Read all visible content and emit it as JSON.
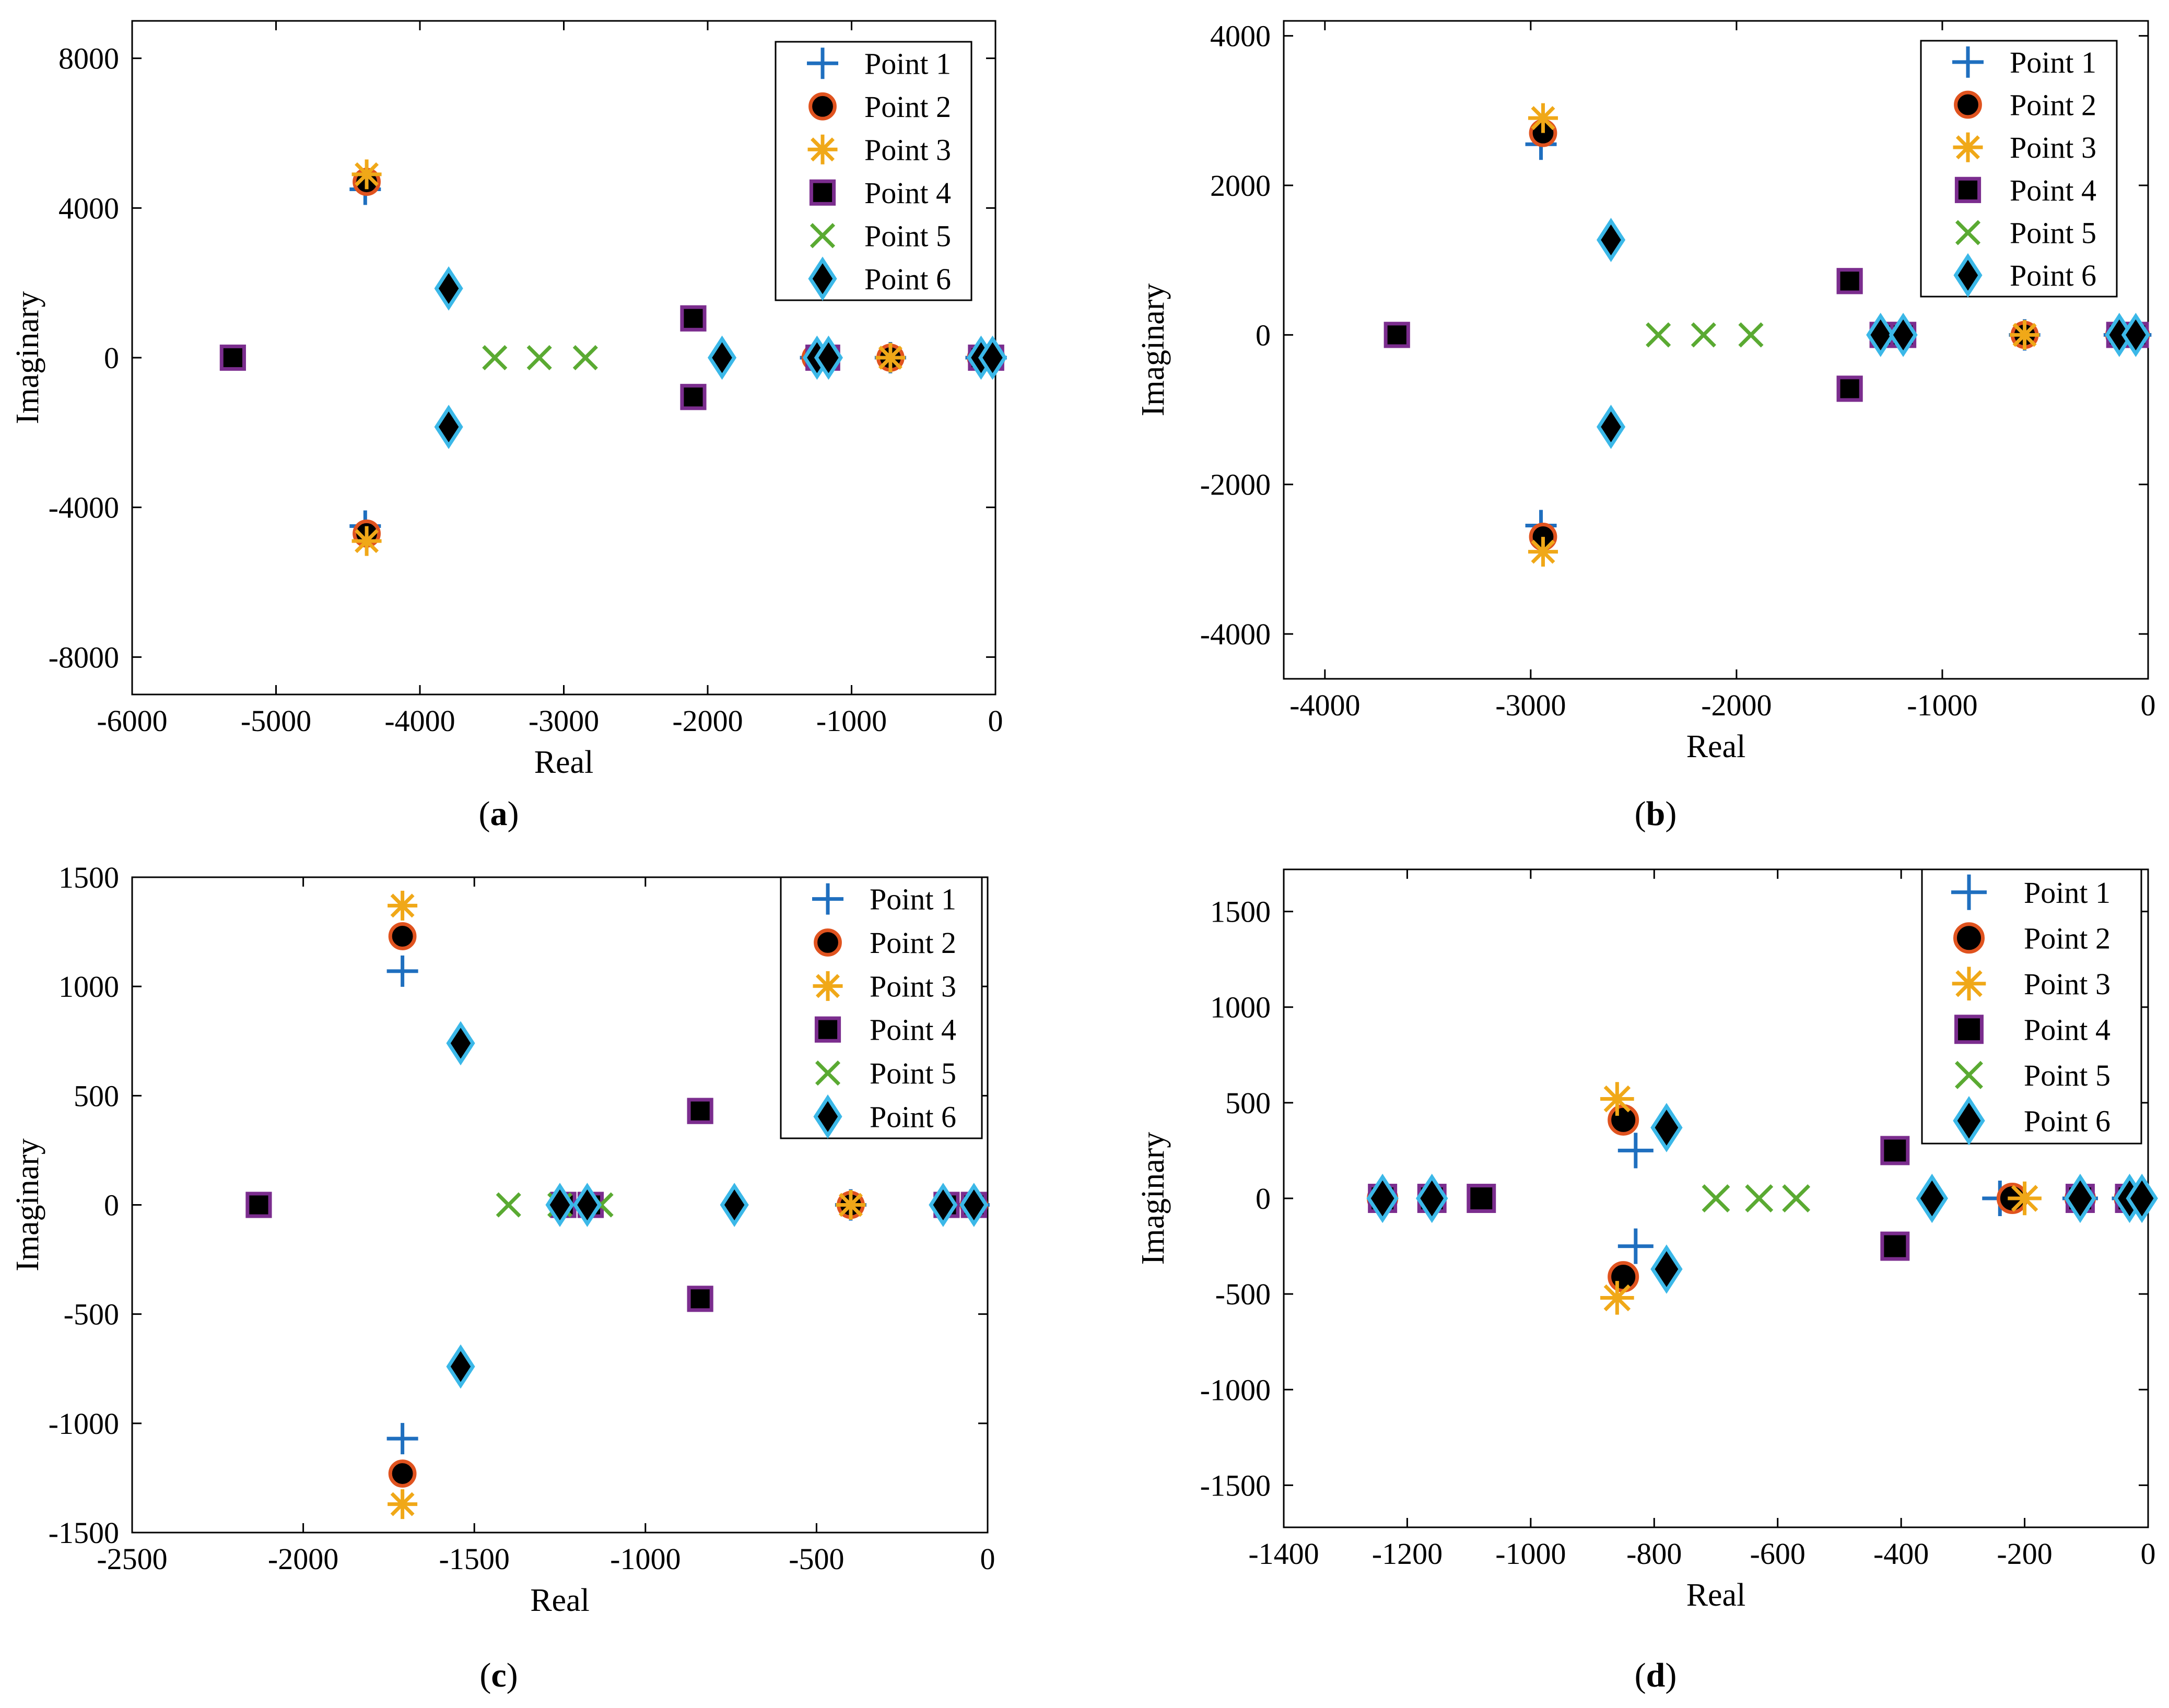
{
  "figure": {
    "colors": {
      "point1": "#1f6fbf",
      "point2_edge": "#e0531f",
      "point3": "#f0a818",
      "point4_edge": "#7b2d8e",
      "point5": "#5aaa32",
      "point6_edge": "#3bb8e8",
      "marker_fill": "#000000"
    }
  },
  "chart_data": [
    {
      "id": "a",
      "panel_label": "(a)",
      "type": "scatter",
      "xlabel": "Real",
      "ylabel": "Imaginary",
      "xlim": [
        -6000,
        0
      ],
      "ylim": [
        -9000,
        9000
      ],
      "xticks": [
        -6000,
        -5000,
        -4000,
        -3000,
        -2000,
        -1000,
        0
      ],
      "yticks": [
        -8000,
        -4000,
        0,
        4000,
        8000
      ],
      "legend_position": "top-right",
      "series": [
        {
          "name": "Point 1",
          "marker": "plus",
          "points": [
            [
              -4380,
              4500
            ],
            [
              -4380,
              -4500
            ],
            [
              -1250,
              0
            ],
            [
              -730,
              0
            ],
            [
              -100,
              0
            ],
            [
              -30,
              0
            ]
          ]
        },
        {
          "name": "Point 2",
          "marker": "circle",
          "points": [
            [
              -4370,
              4700
            ],
            [
              -4370,
              -4700
            ],
            [
              -1250,
              0
            ],
            [
              -730,
              0
            ],
            [
              -100,
              0
            ],
            [
              -30,
              0
            ]
          ]
        },
        {
          "name": "Point 3",
          "marker": "asterisk",
          "points": [
            [
              -4370,
              4900
            ],
            [
              -4370,
              -4900
            ],
            [
              -730,
              0
            ]
          ]
        },
        {
          "name": "Point 4",
          "marker": "square",
          "points": [
            [
              -5300,
              0
            ],
            [
              -2100,
              1050
            ],
            [
              -2100,
              -1050
            ],
            [
              -1230,
              0
            ],
            [
              -1170,
              0
            ],
            [
              -100,
              0
            ],
            [
              -30,
              0
            ]
          ]
        },
        {
          "name": "Point 5",
          "marker": "x",
          "points": [
            [
              -3480,
              0
            ],
            [
              -3170,
              0
            ],
            [
              -2850,
              0
            ]
          ]
        },
        {
          "name": "Point 6",
          "marker": "diamond",
          "points": [
            [
              -3800,
              1850
            ],
            [
              -3800,
              -1850
            ],
            [
              -1900,
              0
            ],
            [
              -1240,
              0
            ],
            [
              -1160,
              0
            ],
            [
              -100,
              0
            ],
            [
              -20,
              0
            ]
          ]
        }
      ]
    },
    {
      "id": "b",
      "panel_label": "(b)",
      "type": "scatter",
      "xlabel": "Real",
      "ylabel": "Imaginary",
      "xlim": [
        -4200,
        0
      ],
      "ylim": [
        -4600,
        4200
      ],
      "xticks": [
        -4000,
        -3000,
        -2000,
        -1000,
        0
      ],
      "yticks": [
        -4000,
        -2000,
        0,
        2000,
        4000
      ],
      "legend_position": "top-right",
      "series": [
        {
          "name": "Point 1",
          "marker": "plus",
          "points": [
            [
              -2950,
              2550
            ],
            [
              -2950,
              -2550
            ],
            [
              -600,
              0
            ],
            [
              -140,
              0
            ],
            [
              -60,
              0
            ]
          ]
        },
        {
          "name": "Point 2",
          "marker": "circle",
          "points": [
            [
              -2940,
              2700
            ],
            [
              -2940,
              -2700
            ],
            [
              -600,
              0
            ],
            [
              -140,
              0
            ],
            [
              -60,
              0
            ]
          ]
        },
        {
          "name": "Point 3",
          "marker": "asterisk",
          "points": [
            [
              -2940,
              2900
            ],
            [
              -2940,
              -2900
            ],
            [
              -600,
              0
            ]
          ]
        },
        {
          "name": "Point 4",
          "marker": "square",
          "points": [
            [
              -3650,
              0
            ],
            [
              -1450,
              720
            ],
            [
              -1450,
              -720
            ],
            [
              -1290,
              0
            ],
            [
              -1190,
              0
            ],
            [
              -140,
              0
            ],
            [
              -60,
              0
            ]
          ]
        },
        {
          "name": "Point 5",
          "marker": "x",
          "points": [
            [
              -2380,
              0
            ],
            [
              -2160,
              0
            ],
            [
              -1930,
              0
            ]
          ]
        },
        {
          "name": "Point 6",
          "marker": "diamond",
          "points": [
            [
              -2610,
              1270
            ],
            [
              -2610,
              -1230
            ],
            [
              -1300,
              0
            ],
            [
              -1190,
              0
            ],
            [
              -140,
              0
            ],
            [
              -60,
              0
            ]
          ]
        }
      ]
    },
    {
      "id": "c",
      "panel_label": "(c)",
      "type": "scatter",
      "xlabel": "Real",
      "ylabel": "Imaginary",
      "xlim": [
        -2500,
        0
      ],
      "ylim": [
        -1500,
        1500
      ],
      "xticks": [
        -2500,
        -2000,
        -1500,
        -1000,
        -500,
        0
      ],
      "yticks": [
        -1500,
        -1000,
        -500,
        0,
        500,
        1000,
        1500
      ],
      "legend_position": "top-right",
      "series": [
        {
          "name": "Point 1",
          "marker": "plus",
          "points": [
            [
              -1710,
              1070
            ],
            [
              -1710,
              -1070
            ],
            [
              -400,
              0
            ],
            [
              -40,
              0
            ]
          ]
        },
        {
          "name": "Point 2",
          "marker": "circle",
          "points": [
            [
              -1710,
              1230
            ],
            [
              -1710,
              -1230
            ],
            [
              -400,
              0
            ],
            [
              -40,
              0
            ]
          ]
        },
        {
          "name": "Point 3",
          "marker": "asterisk",
          "points": [
            [
              -1710,
              1370
            ],
            [
              -1710,
              -1370
            ],
            [
              -400,
              0
            ]
          ]
        },
        {
          "name": "Point 4",
          "marker": "square",
          "points": [
            [
              -2130,
              0
            ],
            [
              -840,
              430
            ],
            [
              -840,
              -430
            ],
            [
              -1240,
              0
            ],
            [
              -1160,
              0
            ],
            [
              -120,
              0
            ],
            [
              -40,
              0
            ]
          ]
        },
        {
          "name": "Point 5",
          "marker": "x",
          "points": [
            [
              -1400,
              0
            ],
            [
              -1250,
              0
            ],
            [
              -1130,
              0
            ]
          ]
        },
        {
          "name": "Point 6",
          "marker": "diamond",
          "points": [
            [
              -1540,
              740
            ],
            [
              -1540,
              -740
            ],
            [
              -1250,
              0
            ],
            [
              -1170,
              0
            ],
            [
              -740,
              0
            ],
            [
              -130,
              0
            ],
            [
              -40,
              0
            ]
          ]
        }
      ]
    },
    {
      "id": "d",
      "panel_label": "(d)",
      "type": "scatter",
      "xlabel": "Real",
      "ylabel": "Imaginary",
      "xlim": [
        -1400,
        0
      ],
      "ylim": [
        -1720,
        1720
      ],
      "xticks": [
        -1400,
        -1200,
        -1000,
        -800,
        -600,
        -400,
        -200,
        0
      ],
      "yticks": [
        -1500,
        -1000,
        -500,
        0,
        500,
        1000,
        1500
      ],
      "legend_position": "top-right",
      "series": [
        {
          "name": "Point 1",
          "marker": "plus",
          "points": [
            [
              -830,
              250
            ],
            [
              -830,
              -250
            ],
            [
              -240,
              0
            ],
            [
              -110,
              0
            ],
            [
              -30,
              0
            ]
          ]
        },
        {
          "name": "Point 2",
          "marker": "circle",
          "points": [
            [
              -850,
              410
            ],
            [
              -850,
              -410
            ],
            [
              -220,
              0
            ],
            [
              -1240,
              0
            ],
            [
              -110,
              0
            ],
            [
              -30,
              0
            ]
          ]
        },
        {
          "name": "Point 3",
          "marker": "asterisk",
          "points": [
            [
              -860,
              520
            ],
            [
              -860,
              -520
            ],
            [
              -200,
              0
            ]
          ]
        },
        {
          "name": "Point 4",
          "marker": "square",
          "points": [
            [
              -1080,
              0
            ],
            [
              -410,
              250
            ],
            [
              -410,
              -250
            ],
            [
              -1240,
              0
            ],
            [
              -1160,
              0
            ],
            [
              -110,
              0
            ],
            [
              -30,
              0
            ]
          ]
        },
        {
          "name": "Point 5",
          "marker": "x",
          "points": [
            [
              -700,
              0
            ],
            [
              -630,
              0
            ],
            [
              -570,
              0
            ]
          ]
        },
        {
          "name": "Point 6",
          "marker": "diamond",
          "points": [
            [
              -780,
              370
            ],
            [
              -780,
              -370
            ],
            [
              -1240,
              0
            ],
            [
              -1160,
              0
            ],
            [
              -350,
              0
            ],
            [
              -110,
              0
            ],
            [
              -30,
              0
            ],
            [
              -10,
              0
            ]
          ]
        }
      ]
    }
  ]
}
